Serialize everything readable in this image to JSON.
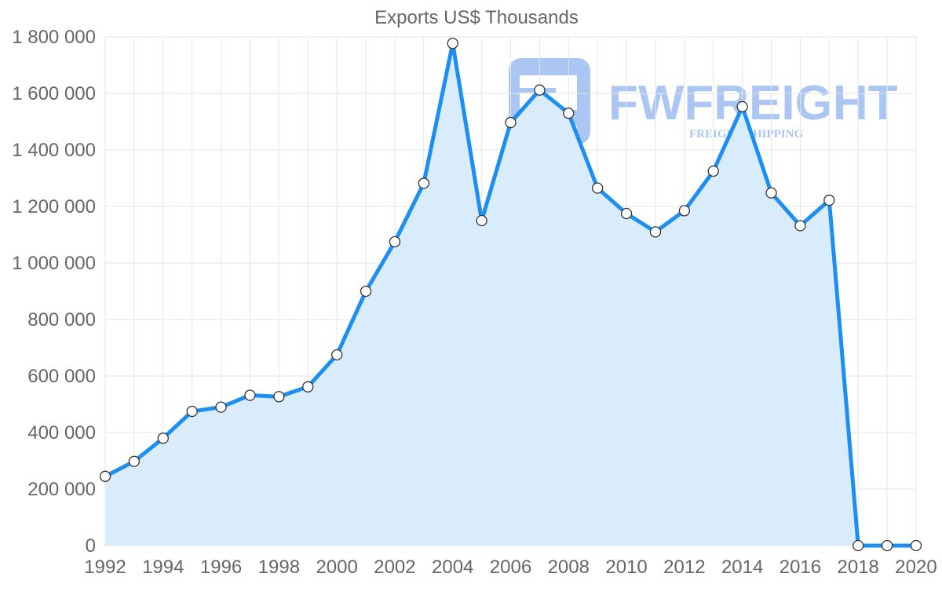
{
  "watermark": {
    "brand": "FWFREIGHT",
    "tagline": "FREIGHT SHIPPING",
    "color": "#3b78e7"
  },
  "colors": {
    "line": "#1e8ff0",
    "fill": "#d9ecfc",
    "grid": "#e6e6e6",
    "axis_text": "#666666",
    "point_fill": "#ffffff",
    "point_stroke": "#333333"
  },
  "chart_data": {
    "type": "area",
    "title": "Exports US$ Thousands",
    "xlabel": "",
    "ylabel": "",
    "x": [
      1992,
      1993,
      1994,
      1995,
      1996,
      1997,
      1998,
      1999,
      2000,
      2001,
      2002,
      2003,
      2004,
      2005,
      2006,
      2007,
      2008,
      2009,
      2010,
      2011,
      2012,
      2013,
      2014,
      2015,
      2016,
      2017,
      2018,
      2019,
      2020
    ],
    "series": [
      {
        "name": "Exports US$ Thousands",
        "values": [
          245000,
          298000,
          380000,
          475000,
          490000,
          532000,
          527000,
          562000,
          675000,
          900000,
          1075000,
          1282000,
          1777000,
          1150000,
          1497000,
          1612000,
          1530000,
          1265000,
          1175000,
          1110000,
          1185000,
          1325000,
          1553000,
          1248000,
          1132000,
          1222000,
          0,
          0,
          0
        ]
      }
    ],
    "xticks": [
      "1992",
      "1994",
      "1996",
      "1998",
      "2000",
      "2002",
      "2004",
      "2006",
      "2008",
      "2010",
      "2012",
      "2014",
      "2016",
      "2018",
      "2020"
    ],
    "yticks": [
      "0",
      "200 000",
      "400 000",
      "600 000",
      "800 000",
      "1 000 000",
      "1 200 000",
      "1 400 000",
      "1 600 000",
      "1 800 000"
    ],
    "ylim": [
      0,
      1800000
    ],
    "xlim": [
      1992,
      2020
    ],
    "grid": true,
    "legend": "none"
  }
}
